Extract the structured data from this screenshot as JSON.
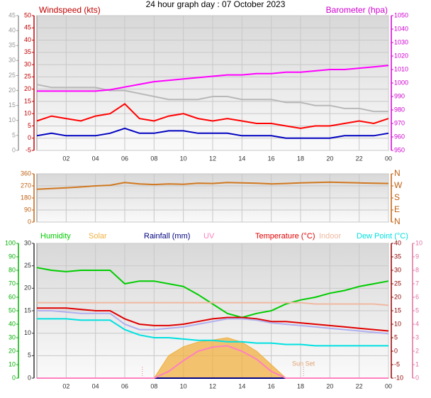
{
  "chart_data": [
    {
      "type": "line",
      "title": "24 hour graph day : 07 October 2023",
      "ylabel": "Windspeed (kts)",
      "y2label": "Barometer (hpa)",
      "x": [
        0,
        1,
        2,
        3,
        4,
        5,
        6,
        7,
        8,
        9,
        10,
        11,
        12,
        13,
        14,
        15,
        16,
        17,
        18,
        19,
        20,
        21,
        22,
        23,
        24
      ],
      "xlim": [
        0,
        24
      ],
      "xticks": [
        {
          "value": 2,
          "label": "02"
        },
        {
          "value": 4,
          "label": "04"
        },
        {
          "value": 6,
          "label": "06"
        },
        {
          "value": 8,
          "label": "08"
        },
        10,
        12,
        14,
        16,
        18,
        20,
        22,
        {
          "value": 24,
          "label": "00"
        }
      ],
      "ylim": [
        -5,
        50
      ],
      "yticks": [
        -5,
        0,
        5,
        10,
        15,
        20,
        25,
        30,
        35,
        40,
        45,
        50
      ],
      "y3lim": [
        0,
        45
      ],
      "y3ticks": [
        0,
        5,
        10,
        15,
        20,
        25,
        30,
        35,
        40,
        45
      ],
      "y2lim": [
        950,
        1050
      ],
      "y2ticks": [
        950,
        960,
        970,
        980,
        990,
        1000,
        1010,
        1020,
        1030,
        1040,
        1050
      ],
      "grid": true,
      "series": [
        {
          "color": "#b8b8b8",
          "axis": "y3",
          "values": [
            22,
            21,
            21,
            21,
            21,
            20,
            20,
            19,
            18,
            17,
            17,
            17,
            18,
            18,
            17,
            17,
            17,
            16,
            16,
            15,
            15,
            14,
            14,
            13,
            13
          ]
        },
        {
          "color": "#ff00ff",
          "axis": "y2",
          "values": [
            994,
            994,
            994,
            994,
            994,
            995,
            997,
            999,
            1001,
            1002,
            1003,
            1004,
            1005,
            1006,
            1006,
            1007,
            1007,
            1008,
            1008,
            1009,
            1010,
            1010,
            1011,
            1012,
            1013
          ]
        },
        {
          "color": "#ff0000",
          "values": [
            7,
            9,
            8,
            7,
            9,
            10,
            14,
            8,
            7,
            9,
            10,
            8,
            7,
            8,
            7,
            6,
            6,
            5,
            4,
            5,
            5,
            6,
            7,
            6,
            8
          ]
        },
        {
          "color": "#0000c0",
          "values": [
            1,
            2,
            1,
            1,
            1,
            2,
            4,
            2,
            2,
            3,
            3,
            2,
            2,
            2,
            1,
            1,
            1,
            0,
            0,
            0,
            0,
            1,
            1,
            1,
            2
          ]
        }
      ]
    },
    {
      "type": "line",
      "x": [
        0,
        1,
        2,
        3,
        4,
        5,
        6,
        7,
        8,
        9,
        10,
        11,
        12,
        13,
        14,
        15,
        16,
        17,
        18,
        19,
        20,
        21,
        22,
        23,
        24
      ],
      "xlim": [
        0,
        24
      ],
      "xticks": [
        2,
        4,
        6,
        8,
        10,
        12,
        14,
        16,
        18,
        20,
        22,
        24
      ],
      "ylim": [
        0,
        360
      ],
      "yticks": [
        0,
        90,
        180,
        270,
        360
      ],
      "y2lim": [
        0,
        360
      ],
      "y2ticks": [
        {
          "value": 0,
          "label": "N"
        },
        {
          "value": 90,
          "label": "E"
        },
        {
          "value": 180,
          "label": "S"
        },
        {
          "value": 270,
          "label": "W"
        },
        {
          "value": 360,
          "label": "N"
        }
      ],
      "grid": true,
      "series": [
        {
          "color": "#d07820",
          "values": [
            245,
            250,
            255,
            262,
            270,
            275,
            295,
            285,
            280,
            285,
            282,
            290,
            288,
            295,
            292,
            290,
            285,
            288,
            292,
            295,
            298,
            295,
            292,
            290,
            288
          ]
        }
      ]
    },
    {
      "type": "line",
      "x": [
        0,
        1,
        2,
        3,
        4,
        5,
        6,
        7,
        8,
        9,
        10,
        11,
        12,
        13,
        14,
        15,
        16,
        17,
        18,
        19,
        20,
        21,
        22,
        23,
        24
      ],
      "xlim": [
        0,
        24
      ],
      "xticks": [
        {
          "value": 2,
          "label": "02"
        },
        {
          "value": 4,
          "label": "04"
        },
        {
          "value": 6,
          "label": "06"
        },
        {
          "value": 8,
          "label": "08"
        },
        10,
        12,
        14,
        16,
        18,
        20,
        22,
        {
          "value": 24,
          "label": "00"
        }
      ],
      "ylim": [
        0,
        30
      ],
      "yticks": [
        0,
        5,
        10,
        15,
        20,
        25,
        30
      ],
      "y3lim": [
        0,
        100
      ],
      "y3ticks": [
        0,
        10,
        20,
        30,
        40,
        50,
        60,
        70,
        80,
        90,
        100
      ],
      "y2lim": [
        -10,
        40
      ],
      "y2ticks": [
        -10,
        -5,
        0,
        5,
        10,
        15,
        20,
        25,
        30,
        35,
        40
      ],
      "y4lim": [
        0,
        10
      ],
      "y4ticks": [
        0,
        1,
        2,
        3,
        4,
        5,
        6,
        7,
        8,
        9,
        10
      ],
      "grid": true,
      "event_lines": [
        7.2,
        18.2
      ],
      "annotations": [
        {
          "text": "Sun Set",
          "x": 18.2
        }
      ],
      "series": [
        {
          "name": "Humidity",
          "color": "#00cc00",
          "axis": "y3",
          "values": [
            82,
            80,
            79,
            80,
            80,
            80,
            70,
            72,
            72,
            70,
            68,
            62,
            55,
            48,
            45,
            48,
            50,
            55,
            58,
            60,
            63,
            65,
            68,
            70,
            72
          ]
        },
        {
          "name": "Solar",
          "color": "#f0b040",
          "style": "area",
          "values": [
            0,
            0,
            0,
            0,
            0,
            0,
            0,
            0,
            0,
            5,
            7,
            8,
            8.5,
            9,
            8,
            6,
            3,
            0,
            0,
            0,
            0,
            0,
            0,
            0,
            0
          ]
        },
        {
          "name": "Rainfall (mm)",
          "color": "#000080",
          "values": [
            0,
            0,
            0,
            0,
            0,
            0,
            0,
            0,
            0,
            0,
            0,
            0,
            0,
            0,
            0,
            0,
            0,
            0,
            0,
            0,
            0,
            0,
            0,
            0,
            0
          ]
        },
        {
          "name": "UV",
          "color": "#ff80c0",
          "axis": "y4",
          "values": [
            0,
            0,
            0,
            0,
            0,
            0,
            0,
            0,
            0,
            0.5,
            1.3,
            2,
            2.3,
            2.4,
            2,
            1.4,
            0.5,
            0,
            0,
            0,
            0,
            0,
            0,
            0,
            0
          ]
        },
        {
          "name": "Temperature (°C)",
          "color": "#e00000",
          "axis": "y2",
          "values": [
            16,
            16,
            16,
            15.5,
            15,
            15,
            12,
            10,
            9.5,
            9.5,
            10,
            11,
            12,
            12.5,
            12.5,
            12,
            11,
            11,
            10.5,
            10,
            9.5,
            9,
            8.5,
            8,
            7.5
          ]
        },
        {
          "name": "Indoor",
          "color": "#f0b8a0",
          "axis": "y2",
          "values": [
            18,
            18,
            18,
            18,
            18,
            18,
            18,
            18,
            18,
            18,
            18,
            18,
            18,
            18,
            18,
            18,
            18,
            18,
            18,
            17.5,
            17.5,
            17.5,
            17.5,
            17.5,
            17
          ]
        },
        {
          "name": "Dew Point (°C)",
          "color": "#00e0e0",
          "axis": "y2",
          "values": [
            12,
            12,
            12,
            11.5,
            11.5,
            11.5,
            8,
            6,
            5,
            5,
            4.5,
            4,
            4,
            3.5,
            3.5,
            3,
            3,
            2.5,
            2.5,
            2,
            2,
            2,
            2,
            2,
            2
          ]
        },
        {
          "color": "#b0b0f0",
          "axis": "y2",
          "values": [
            15,
            15,
            14.5,
            14,
            14,
            14,
            10,
            8,
            8,
            8.5,
            9,
            10,
            11,
            12,
            12,
            11.5,
            10.5,
            10,
            9.5,
            9,
            8.5,
            8,
            7.5,
            7,
            6.5
          ]
        }
      ]
    }
  ]
}
